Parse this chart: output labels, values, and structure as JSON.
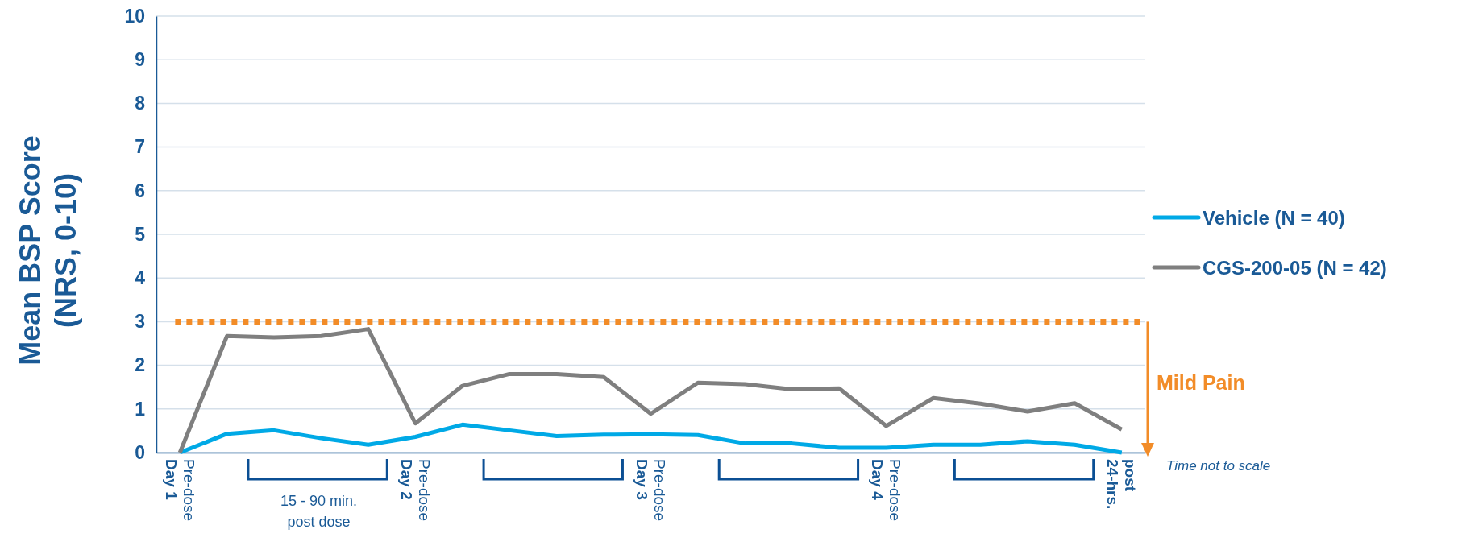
{
  "chart_data": {
    "type": "line",
    "ylabel": "Mean BSP Score\n(NRS, 0-10)",
    "categories": [
      "Day 1\nPre-dose",
      null,
      null,
      null,
      null,
      "Day 2\nPre-dose",
      null,
      null,
      null,
      null,
      "Day 3\nPre-dose",
      null,
      null,
      null,
      null,
      "Day 4\nPre-dose",
      null,
      null,
      null,
      null,
      "24-hrs.\npost"
    ],
    "series": [
      {
        "name": "Vehicle (N = 40)",
        "color": "#00a9e6",
        "values": [
          0,
          0.43,
          0.51,
          0.33,
          0.18,
          0.36,
          0.64,
          0.51,
          0.38,
          0.41,
          0.42,
          0.4,
          0.21,
          0.21,
          0.11,
          0.11,
          0.18,
          0.18,
          0.26,
          0.18,
          0
        ]
      },
      {
        "name": "CGS-200-05 (N = 42)",
        "color": "#7f7f7f",
        "values": [
          0,
          2.67,
          2.64,
          2.67,
          2.83,
          0.67,
          1.53,
          1.8,
          1.8,
          1.73,
          0.89,
          1.6,
          1.57,
          1.45,
          1.47,
          0.61,
          1.25,
          1.12,
          0.94,
          1.13,
          0.53
        ]
      }
    ],
    "ylim": [
      0,
      10
    ],
    "yticks": [
      0,
      1,
      2,
      3,
      4,
      5,
      6,
      7,
      8,
      9,
      10
    ],
    "grid": "y",
    "legend": "right",
    "marker": "none",
    "line_style": "solid",
    "ref_lines": [
      {
        "axis": "y",
        "value": 3,
        "label": "Mild Pain",
        "color": "#f28c28",
        "line_style": "dotted"
      }
    ],
    "annotations": [
      "15 - 90 min.\npost dose",
      "Time not to scale"
    ]
  }
}
